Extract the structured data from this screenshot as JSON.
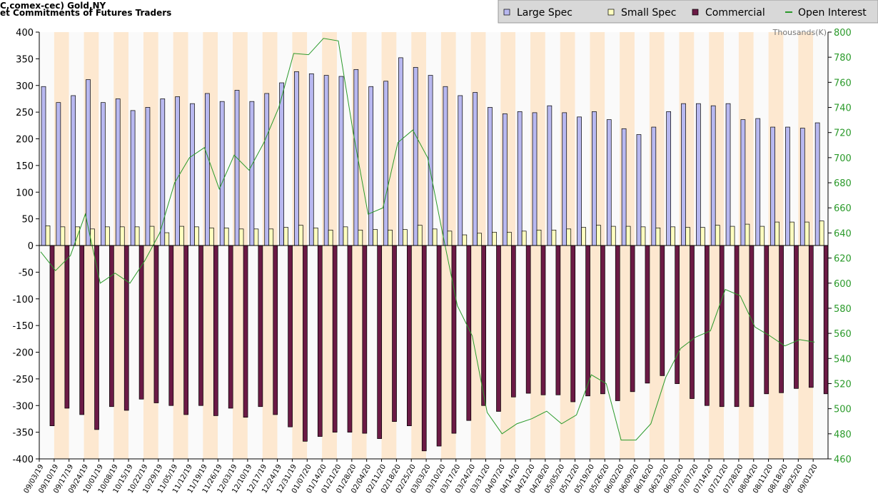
{
  "chart_data": {
    "type": "bar_line",
    "title": "C,comex-cec) Gold,NY",
    "subtitle": "et Commitments of Futures Traders",
    "y2_label": "Thousands(K)",
    "categories": [
      "09/03/19",
      "09/10/19",
      "09/17/19",
      "09/24/19",
      "10/01/19",
      "10/08/19",
      "10/15/19",
      "10/22/19",
      "10/29/19",
      "11/05/19",
      "11/12/19",
      "11/19/19",
      "11/26/19",
      "12/03/19",
      "12/10/19",
      "12/17/19",
      "12/24/19",
      "12/31/19",
      "01/07/20",
      "01/14/20",
      "01/21/20",
      "01/28/20",
      "02/04/20",
      "02/11/20",
      "02/18/20",
      "02/25/20",
      "03/03/20",
      "03/10/20",
      "03/17/20",
      "03/24/20",
      "03/31/20",
      "04/07/20",
      "04/14/20",
      "04/21/20",
      "04/28/20",
      "05/05/20",
      "05/12/20",
      "05/19/20",
      "05/26/20",
      "06/02/20",
      "06/09/20",
      "06/16/20",
      "06/23/20",
      "06/30/20",
      "07/07/20",
      "07/14/20",
      "07/21/20",
      "07/28/20",
      "08/04/20",
      "08/11/20",
      "08/18/20",
      "08/25/20",
      "09/01/20"
    ],
    "series": [
      {
        "name": "Large Spec",
        "color": "#b8b8f0",
        "kind": "bar",
        "values": [
          298,
          268,
          281,
          311,
          268,
          275,
          253,
          259,
          275,
          279,
          266,
          285,
          270,
          291,
          270,
          285,
          305,
          326,
          322,
          319,
          317,
          330,
          298,
          308,
          352,
          334,
          319,
          298,
          281,
          287,
          259,
          247,
          251,
          249,
          262,
          249,
          241,
          251,
          236,
          219,
          208,
          222,
          251,
          266,
          266,
          262,
          266,
          236,
          238,
          222,
          222,
          220,
          230
        ]
      },
      {
        "name": "Small Spec",
        "color": "#ffffc0",
        "kind": "bar",
        "values": [
          37,
          35,
          35,
          31,
          35,
          35,
          35,
          36,
          24,
          36,
          35,
          33,
          33,
          31,
          31,
          31,
          34,
          38,
          33,
          29,
          35,
          29,
          30,
          29,
          30,
          38,
          31,
          27,
          20,
          23,
          25,
          25,
          27,
          29,
          29,
          31,
          34,
          38,
          36,
          36,
          35,
          33,
          35,
          34,
          34,
          38,
          36,
          40,
          36,
          44,
          44,
          44,
          46
        ]
      },
      {
        "name": "Commercial",
        "color": "#6b1a45",
        "kind": "bar",
        "values": [
          -338,
          -305,
          -317,
          -345,
          -302,
          -309,
          -288,
          -295,
          -300,
          -317,
          -300,
          -319,
          -305,
          -322,
          -302,
          -317,
          -340,
          -367,
          -358,
          -350,
          -350,
          -352,
          -362,
          -330,
          -338,
          -385,
          -376,
          -352,
          -328,
          -300,
          -311,
          -284,
          -277,
          -280,
          -280,
          -293,
          -282,
          -278,
          -291,
          -274,
          -258,
          -244,
          -259,
          -287,
          -300,
          -302,
          -302,
          -302,
          -278,
          -276,
          -268,
          -266,
          -278
        ]
      },
      {
        "name": "Open Interest",
        "color": "#2a9a2a",
        "kind": "line",
        "axis": "y2",
        "values": [
          625,
          610,
          622,
          655,
          600,
          608,
          600,
          618,
          640,
          680,
          700,
          708,
          675,
          702,
          690,
          712,
          740,
          783,
          782,
          795,
          793,
          720,
          655,
          660,
          712,
          722,
          700,
          640,
          582,
          558,
          497,
          480,
          488,
          492,
          498,
          488,
          495,
          527,
          520,
          475,
          475,
          488,
          525,
          548,
          557,
          562,
          595,
          590,
          565,
          558,
          550,
          555,
          553
        ]
      }
    ],
    "ylim": [
      -400,
      400
    ],
    "yticks": [
      -400,
      -350,
      -300,
      -250,
      -200,
      -150,
      -100,
      -50,
      0,
      50,
      100,
      150,
      200,
      250,
      300,
      350,
      400
    ],
    "y2lim": [
      460,
      800
    ],
    "y2ticks": [
      460,
      480,
      500,
      520,
      540,
      560,
      580,
      600,
      620,
      640,
      660,
      680,
      700,
      720,
      740,
      760,
      780,
      800
    ],
    "band_colors": [
      "#fafafa",
      "#fde8d0"
    ]
  }
}
